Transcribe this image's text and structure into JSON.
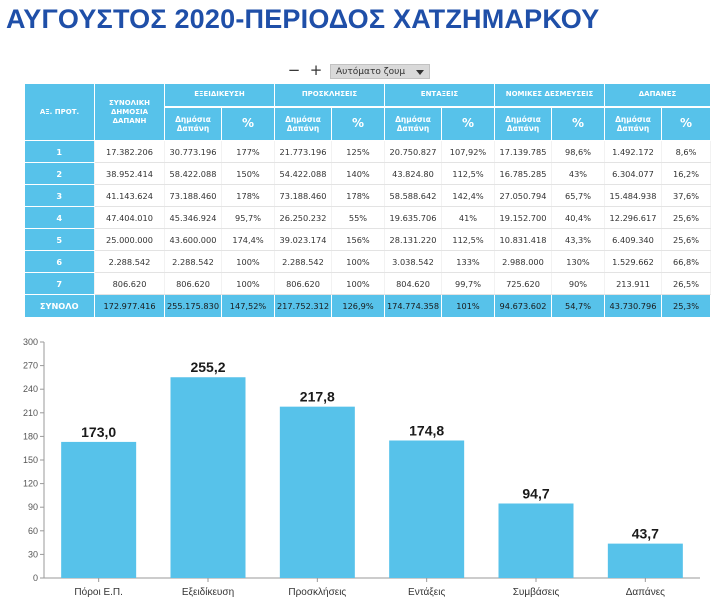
{
  "title": "ΑΥΓΟΥΣΤΟΣ 2020-ΠΕΡΙΟΔΟΣ ΧΑΤΖΗΜΑΡΚΟΥ",
  "toolbar": {
    "zoom_out": "−",
    "zoom_in": "+",
    "zoom_label": "Αυτόματο ζουμ"
  },
  "table": {
    "header": {
      "axis": "ΑΞ. ΠΡΟΤ.",
      "total_spend": "ΣΥΝΟΛΙΚΗ ΔΗΜΟΣΙΑ ΔΑΠΑΝΗ",
      "groups": [
        "ΕΞΕΙΔΙΚΕΥΣΗ",
        "ΠΡΟΣΚΛΗΣΕΙΣ",
        "ΕΝΤΑΞΕΙΣ",
        "ΝΟΜΙΚΕΣ ΔΕΣΜΕΥΣΕΙΣ",
        "ΔΑΠΑΝΕΣ"
      ],
      "sub_public": "Δημόσια Δαπάνη",
      "sub_pct": "%"
    },
    "rows": [
      [
        "1",
        "17.382.206",
        "30.773.196",
        "177%",
        "21.773.196",
        "125%",
        "20.750.827",
        "107,92%",
        "17.139.785",
        "98,6%",
        "1.492.172",
        "8,6%"
      ],
      [
        "2",
        "38.952.414",
        "58.422.088",
        "150%",
        "54.422.088",
        "140%",
        "43.824.80",
        "112,5%",
        "16.785.285",
        "43%",
        "6.304.077",
        "16,2%"
      ],
      [
        "3",
        "41.143.624",
        "73.188.460",
        "178%",
        "73.188.460",
        "178%",
        "58.588.642",
        "142,4%",
        "27.050.794",
        "65,7%",
        "15.484.938",
        "37,6%"
      ],
      [
        "4",
        "47.404.010",
        "45.346.924",
        "95,7%",
        "26.250.232",
        "55%",
        "19.635.706",
        "41%",
        "19.152.700",
        "40,4%",
        "12.296.617",
        "25,6%"
      ],
      [
        "5",
        "25.000.000",
        "43.600.000",
        "174,4%",
        "39.023.174",
        "156%",
        "28.131.220",
        "112,5%",
        "10.831.418",
        "43,3%",
        "6.409.340",
        "25,6%"
      ],
      [
        "6",
        "2.288.542",
        "2.288.542",
        "100%",
        "2.288.542",
        "100%",
        "3.038.542",
        "133%",
        "2.988.000",
        "130%",
        "1.529.662",
        "66,8%"
      ],
      [
        "7",
        "806.620",
        "806.620",
        "100%",
        "806.620",
        "100%",
        "804.620",
        "99,7%",
        "725.620",
        "90%",
        "213.911",
        "26,5%"
      ]
    ],
    "total_row": [
      "ΣΥΝΟΛΟ",
      "172.977.416",
      "255.175.830",
      "147,52%",
      "217.752.312",
      "126,9%",
      "174.774.358",
      "101%",
      "94.673.602",
      "54,7%",
      "43.730.796",
      "25,3%"
    ]
  },
  "chart_data": {
    "type": "bar",
    "categories": [
      "Πόροι Ε.Π.",
      "Εξειδίκευση",
      "Προσκλήσεις",
      "Εντάξεις",
      "Συμβάσεις",
      "Δαπάνες"
    ],
    "values": [
      173.0,
      255.2,
      217.8,
      174.8,
      94.7,
      43.7
    ],
    "value_labels": [
      "173,0",
      "255,2",
      "217,8",
      "174,8",
      "94,7",
      "43,7"
    ],
    "yticks": [
      "0",
      "30",
      "60",
      "90",
      "120",
      "150",
      "180",
      "210",
      "240",
      "270",
      "300"
    ],
    "ylim": [
      0,
      300
    ],
    "bar_color": "#57c2ea",
    "grid": false,
    "title": "",
    "xlabel": "",
    "ylabel": ""
  },
  "colors": {
    "title": "#1f4fa8",
    "accent": "#57c2ea"
  }
}
